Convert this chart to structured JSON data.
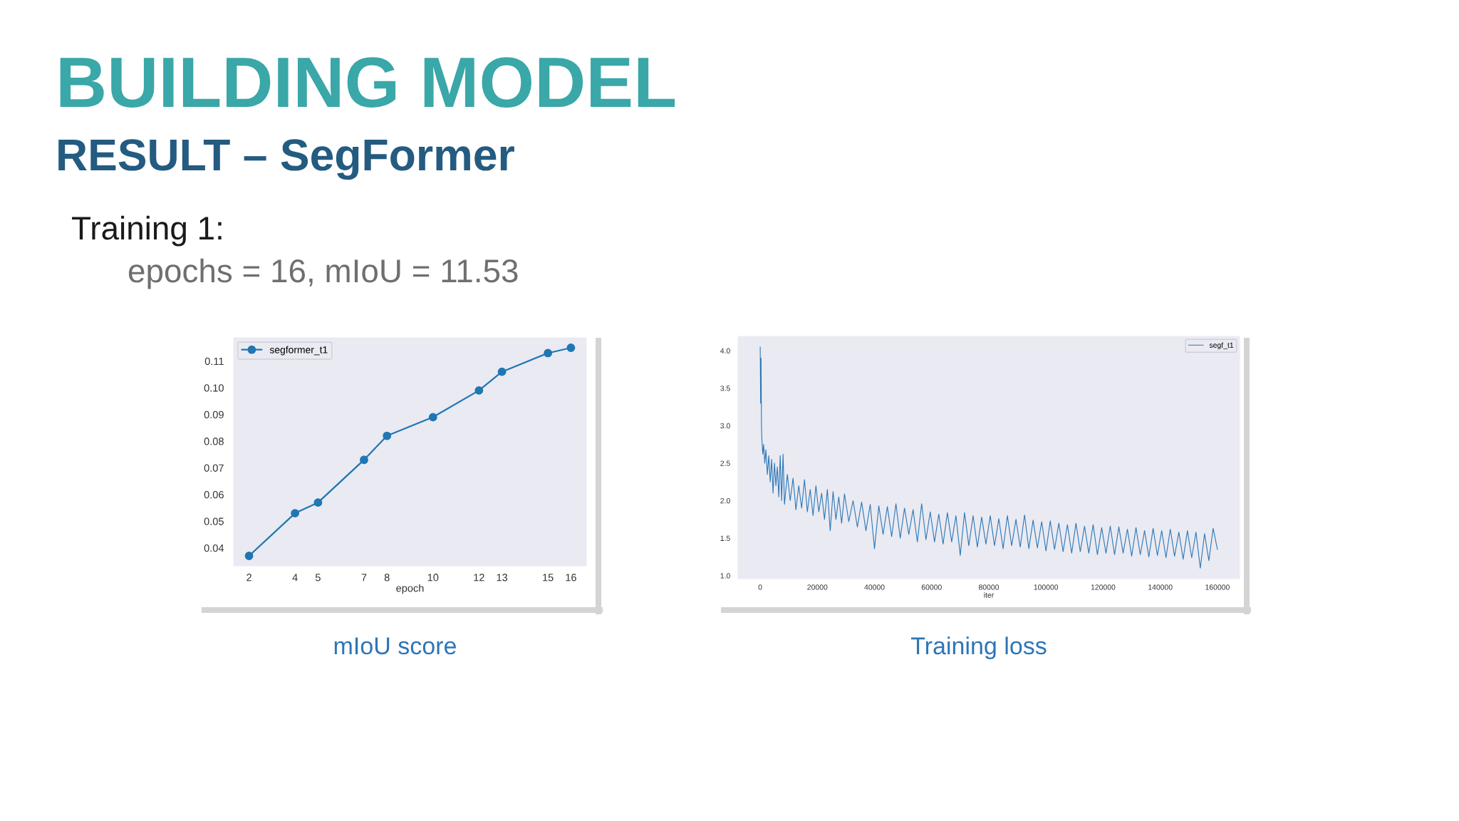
{
  "chart_data": [
    {
      "type": "other",
      "title": "BUILDING MODEL",
      "subtitle": "RESULT – SegFormer",
      "annotations": [
        "Training 1:",
        "epochs = 16, mIoU = 11.53"
      ]
    },
    {
      "type": "line",
      "title": "mIoU score",
      "xlabel": "epoch",
      "x": [
        2,
        4,
        5,
        7,
        8,
        10,
        12,
        13,
        15,
        16
      ],
      "series": [
        {
          "name": "segformer_t1",
          "color": "#1f77b4",
          "values": [
            0.037,
            0.053,
            0.057,
            0.073,
            0.082,
            0.089,
            0.099,
            0.106,
            0.113,
            0.115
          ]
        }
      ],
      "xlim": [
        1.3,
        16.7
      ],
      "xticks": [
        2,
        4,
        5,
        7,
        8,
        10,
        12,
        13,
        15,
        16
      ],
      "ylim": [
        0.033,
        0.119
      ],
      "yticks": [
        0.04,
        0.05,
        0.06,
        0.07,
        0.08,
        0.09,
        {
          "value": 0.1,
          "label": "0.10"
        },
        0.11
      ],
      "marker": "circle",
      "legend": "top left"
    },
    {
      "type": "line",
      "title": "Training loss",
      "xlabel": "iter",
      "series": [
        {
          "name": "segf_t1",
          "color": "#2c78b6",
          "x": [
            0,
            150,
            300,
            450,
            600,
            900,
            1200,
            1600,
            2000,
            2500,
            3000,
            3500,
            4000,
            4500,
            5000,
            5500,
            6000,
            6500,
            7000,
            7500,
            8000,
            8500,
            9500,
            10500,
            11500,
            12500,
            13500,
            14500,
            15500,
            16500,
            17500,
            18500,
            19500,
            20500,
            21500,
            22500,
            23500,
            24500,
            25500,
            26500,
            27500,
            28500,
            29500,
            31000,
            32500,
            34000,
            35500,
            37000,
            38500,
            40000,
            41500,
            43000,
            44500,
            46000,
            47500,
            49000,
            50500,
            52000,
            53500,
            55000,
            56500,
            58000,
            59500,
            61000,
            62500,
            64000,
            65500,
            67000,
            68500,
            70000,
            71500,
            73000,
            74500,
            76000,
            77500,
            79000,
            80500,
            82000,
            83500,
            85000,
            86500,
            88000,
            89500,
            91000,
            92500,
            94000,
            95500,
            97000,
            98500,
            100000,
            101500,
            103000,
            104500,
            106000,
            107500,
            109000,
            110500,
            112000,
            113500,
            115000,
            116500,
            118000,
            119500,
            121000,
            122500,
            124000,
            125500,
            127000,
            128500,
            130000,
            131500,
            133000,
            134500,
            136000,
            137500,
            139000,
            140500,
            142000,
            143500,
            145000,
            146500,
            148000,
            149500,
            151000,
            152500,
            154000,
            155500,
            157000,
            158500,
            160000
          ],
          "values": [
            4.05,
            3.3,
            3.9,
            3.0,
            2.8,
            2.62,
            2.75,
            2.5,
            2.68,
            2.35,
            2.6,
            2.25,
            2.55,
            2.1,
            2.5,
            2.2,
            2.45,
            2.05,
            2.6,
            2.0,
            2.62,
            1.95,
            2.35,
            2.0,
            2.3,
            1.88,
            2.2,
            1.9,
            2.28,
            1.85,
            2.15,
            1.8,
            2.2,
            1.85,
            2.1,
            1.75,
            2.15,
            1.6,
            2.12,
            1.75,
            2.05,
            1.7,
            2.09,
            1.72,
            2.0,
            1.65,
            1.98,
            1.6,
            1.95,
            1.36,
            1.93,
            1.55,
            1.92,
            1.52,
            1.96,
            1.5,
            1.9,
            1.55,
            1.88,
            1.45,
            1.96,
            1.48,
            1.85,
            1.45,
            1.82,
            1.42,
            1.84,
            1.45,
            1.8,
            1.27,
            1.84,
            1.4,
            1.8,
            1.38,
            1.78,
            1.42,
            1.8,
            1.4,
            1.76,
            1.36,
            1.8,
            1.4,
            1.75,
            1.38,
            1.81,
            1.36,
            1.74,
            1.37,
            1.72,
            1.33,
            1.73,
            1.35,
            1.7,
            1.32,
            1.68,
            1.3,
            1.7,
            1.32,
            1.66,
            1.3,
            1.68,
            1.28,
            1.64,
            1.3,
            1.66,
            1.28,
            1.65,
            1.3,
            1.62,
            1.26,
            1.64,
            1.28,
            1.6,
            1.25,
            1.63,
            1.27,
            1.6,
            1.24,
            1.62,
            1.26,
            1.58,
            1.22,
            1.6,
            1.24,
            1.58,
            1.1,
            1.56,
            1.2,
            1.63,
            1.35
          ]
        }
      ],
      "xlim": [
        -8000,
        168000
      ],
      "xticks": [
        0,
        20000,
        40000,
        60000,
        80000,
        100000,
        120000,
        140000,
        160000
      ],
      "ylim": [
        0.95,
        4.2
      ],
      "yticks": [
        {
          "value": 1,
          "label": "1.0"
        },
        1.5,
        {
          "value": 2,
          "label": "2.0"
        },
        2.5,
        {
          "value": 3,
          "label": "3.0"
        },
        3.5,
        {
          "value": 4,
          "label": "4.0"
        }
      ],
      "legend": "top right"
    }
  ]
}
